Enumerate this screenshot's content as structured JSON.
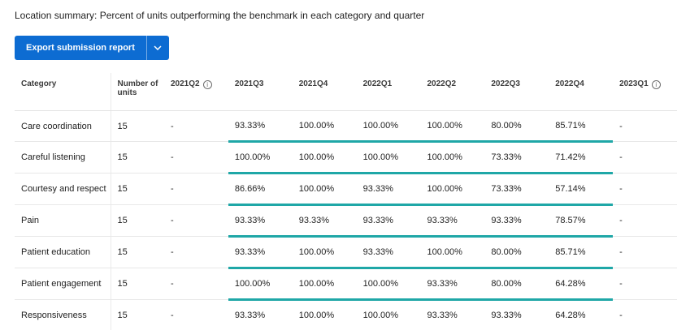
{
  "page": {
    "title": "Location summary: Percent of units outperforming the benchmark in each category and quarter"
  },
  "toolbar": {
    "export_label": "Export submission report",
    "dropdown_icon": "chevron-down-icon"
  },
  "colors": {
    "accent_blue": "#0d6cd2",
    "benchmark_teal": "#1fa7a7"
  },
  "table": {
    "columns": [
      {
        "label": "Category",
        "info": false
      },
      {
        "label": "Number of units",
        "info": false
      },
      {
        "label": "2021Q2",
        "info": true
      },
      {
        "label": "2021Q3",
        "info": false
      },
      {
        "label": "2021Q4",
        "info": false
      },
      {
        "label": "2022Q1",
        "info": false
      },
      {
        "label": "2022Q2",
        "info": false
      },
      {
        "label": "2022Q3",
        "info": false
      },
      {
        "label": "2022Q4",
        "info": false
      },
      {
        "label": "2023Q1",
        "info": true
      }
    ],
    "rows": [
      {
        "category": "Care coordination",
        "units": "15",
        "values": [
          "-",
          "93.33%",
          "100.00%",
          "100.00%",
          "100.00%",
          "80.00%",
          "85.71%",
          "-"
        ]
      },
      {
        "category": "Careful listening",
        "units": "15",
        "values": [
          "-",
          "100.00%",
          "100.00%",
          "100.00%",
          "100.00%",
          "73.33%",
          "71.42%",
          "-"
        ]
      },
      {
        "category": "Courtesy and respect",
        "units": "15",
        "values": [
          "-",
          "86.66%",
          "100.00%",
          "93.33%",
          "100.00%",
          "73.33%",
          "57.14%",
          "-"
        ]
      },
      {
        "category": "Pain",
        "units": "15",
        "values": [
          "-",
          "93.33%",
          "93.33%",
          "93.33%",
          "93.33%",
          "93.33%",
          "78.57%",
          "-"
        ]
      },
      {
        "category": "Patient education",
        "units": "15",
        "values": [
          "-",
          "93.33%",
          "100.00%",
          "93.33%",
          "100.00%",
          "80.00%",
          "85.71%",
          "-"
        ]
      },
      {
        "category": "Patient engagement",
        "units": "15",
        "values": [
          "-",
          "100.00%",
          "100.00%",
          "100.00%",
          "93.33%",
          "80.00%",
          "64.28%",
          "-"
        ]
      },
      {
        "category": "Responsiveness",
        "units": "15",
        "values": [
          "-",
          "93.33%",
          "100.00%",
          "100.00%",
          "93.33%",
          "93.33%",
          "64.28%",
          "-"
        ]
      }
    ]
  }
}
